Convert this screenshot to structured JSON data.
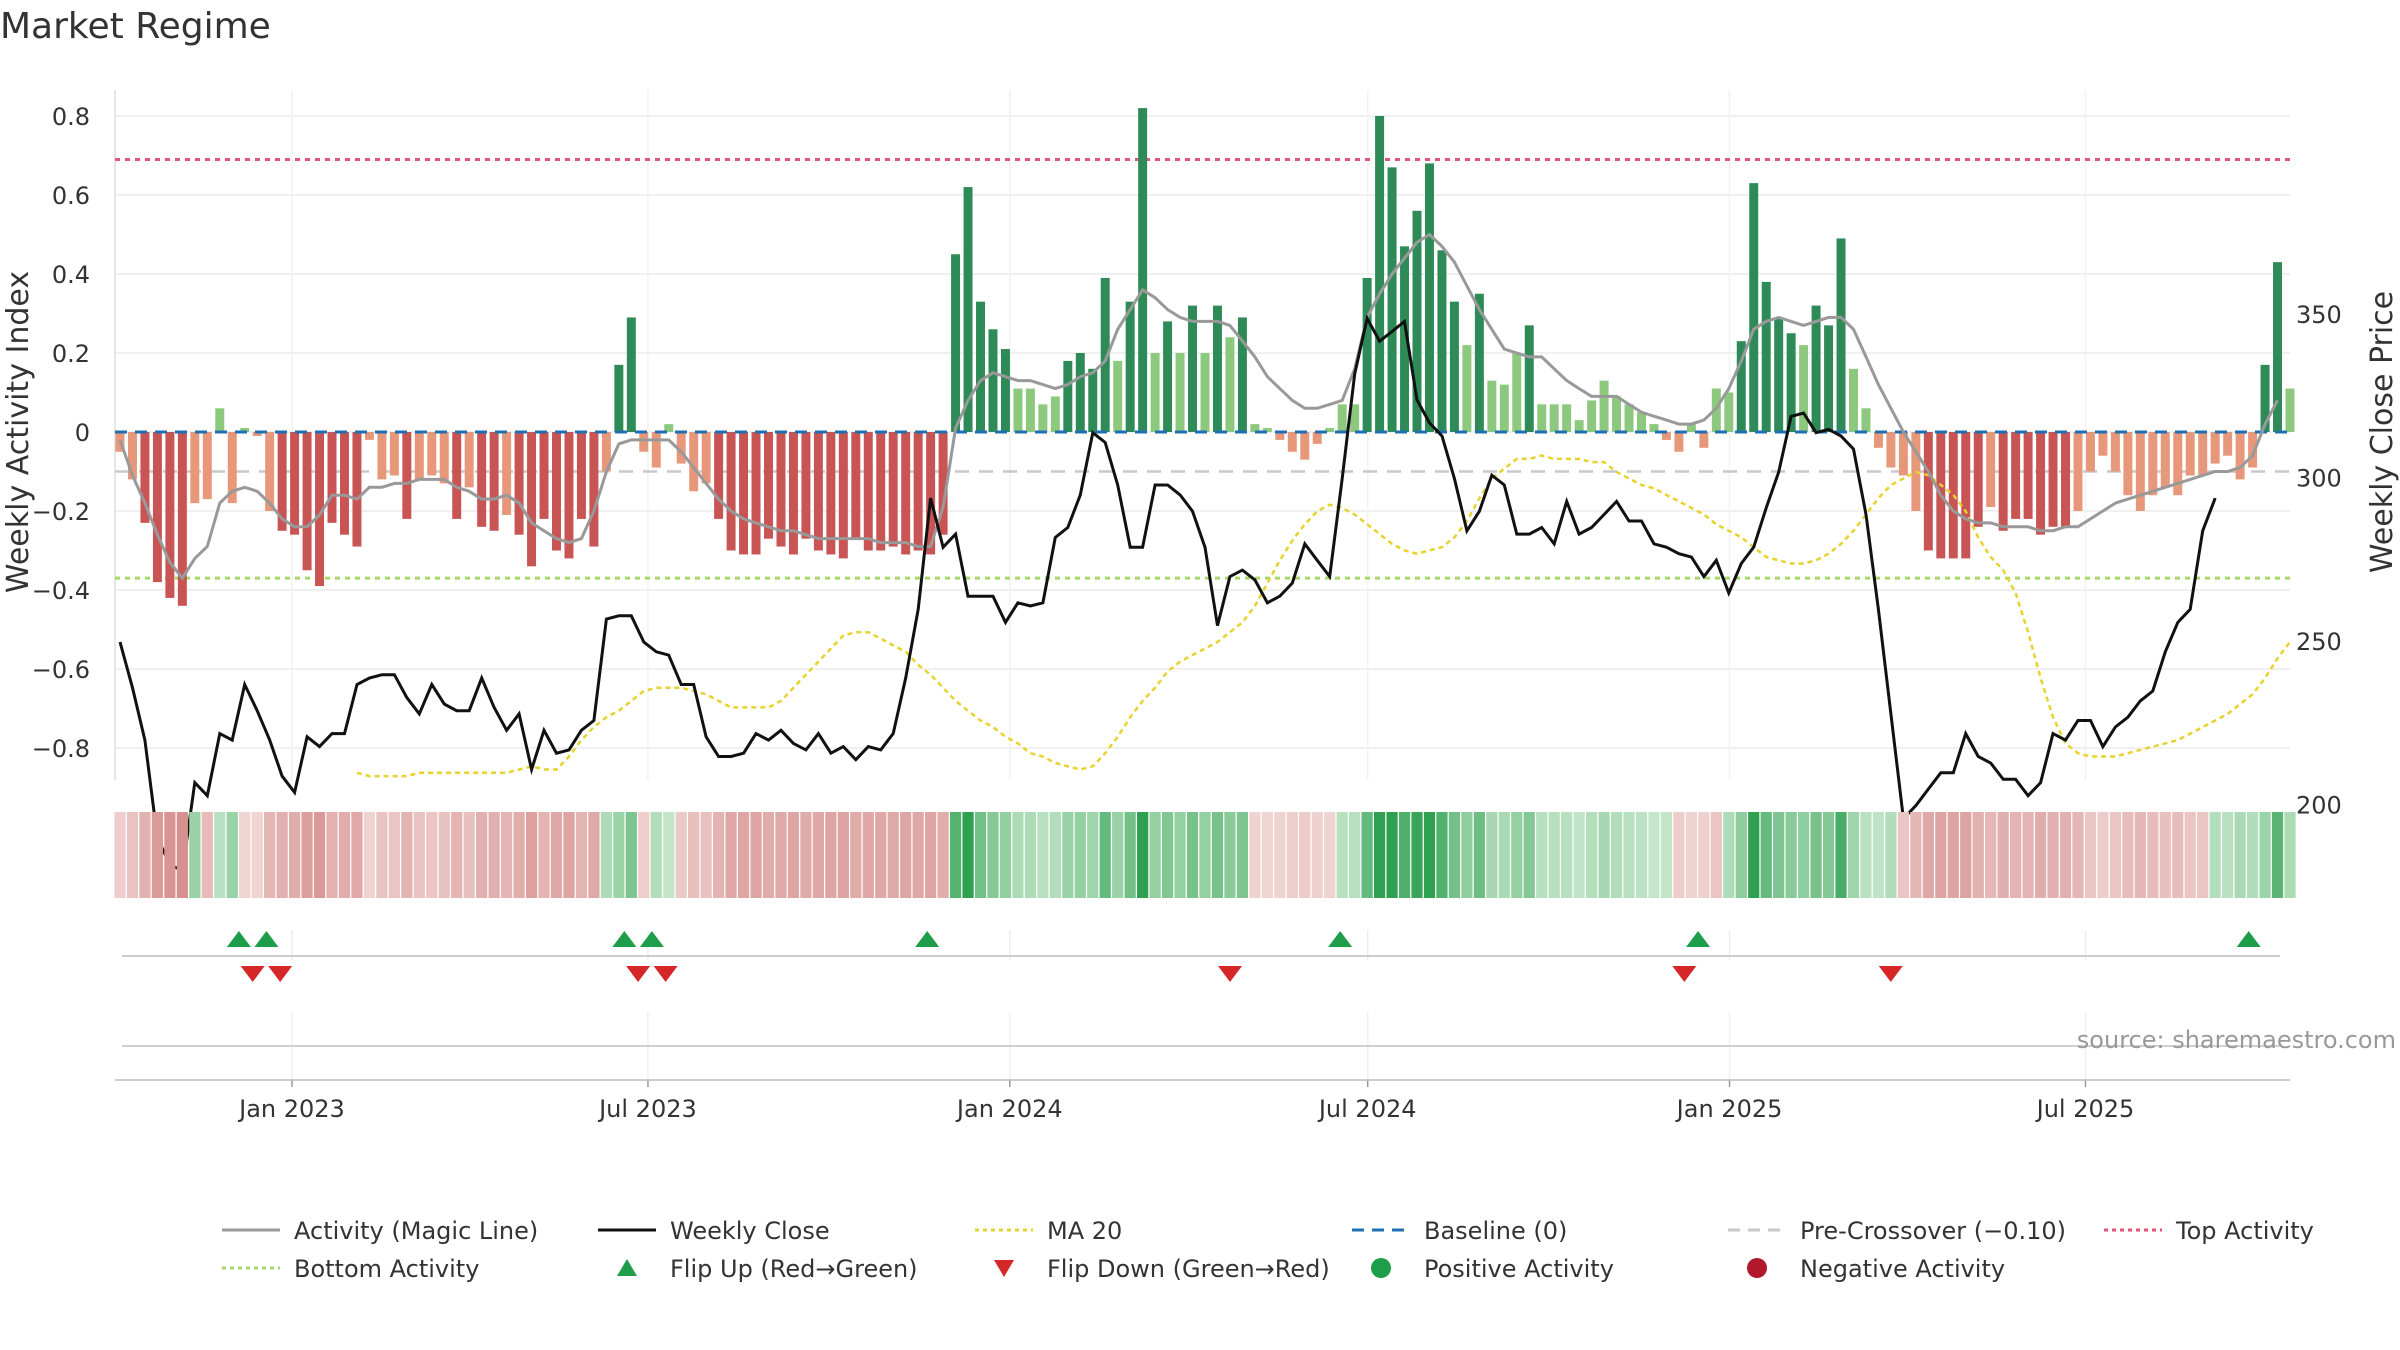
{
  "chart_data": {
    "type": "bar",
    "title": "Market Regime",
    "source": "source: sharemaestro.com",
    "ylabel_left": "Weekly Activity Index",
    "ylabel_right": "Weekly Close Price",
    "ylim_left": [
      -0.9,
      0.9
    ],
    "ylim_right": [
      155,
      365
    ],
    "yticks_left": [
      -0.8,
      -0.6,
      -0.4,
      -0.2,
      0,
      0.2,
      0.4,
      0.6,
      0.8
    ],
    "yticks_left_labels": [
      "−0.8",
      "−0.6",
      "−0.4",
      "−0.2",
      "0",
      "0.2",
      "0.4",
      "0.6",
      "0.8"
    ],
    "yticks_right": [
      200,
      250,
      300,
      350
    ],
    "x_start": "2022-10-03",
    "x_end": "2025-10-13",
    "x_ticks": [
      {
        "date": "2023-01-01",
        "label": "Jan 2023"
      },
      {
        "date": "2023-07-01",
        "label": "Jul 2023"
      },
      {
        "date": "2024-01-01",
        "label": "Jan 2024"
      },
      {
        "date": "2024-07-01",
        "label": "Jul 2024"
      },
      {
        "date": "2025-01-01",
        "label": "Jan 2025"
      },
      {
        "date": "2025-07-01",
        "label": "Jul 2025"
      }
    ],
    "reference_lines": {
      "baseline": 0,
      "pre_crossover": -0.1,
      "top_activity": 0.69,
      "bottom_activity": -0.37
    },
    "activity_index": [
      -0.05,
      -0.12,
      -0.23,
      -0.38,
      -0.42,
      -0.44,
      -0.18,
      -0.17,
      0.06,
      -0.18,
      0.01,
      -0.01,
      -0.2,
      -0.25,
      -0.26,
      -0.35,
      -0.39,
      -0.23,
      -0.26,
      -0.29,
      -0.02,
      -0.12,
      -0.11,
      -0.22,
      -0.12,
      -0.11,
      -0.13,
      -0.22,
      -0.14,
      -0.24,
      -0.25,
      -0.21,
      -0.26,
      -0.34,
      -0.22,
      -0.3,
      -0.32,
      -0.22,
      -0.29,
      -0.1,
      0.17,
      0.29,
      -0.05,
      -0.09,
      0.02,
      -0.08,
      -0.15,
      -0.13,
      -0.22,
      -0.3,
      -0.31,
      -0.31,
      -0.27,
      -0.29,
      -0.31,
      -0.27,
      -0.3,
      -0.31,
      -0.32,
      -0.27,
      -0.3,
      -0.3,
      -0.29,
      -0.31,
      -0.3,
      -0.31,
      -0.26,
      0.45,
      0.62,
      0.33,
      0.26,
      0.21,
      0.11,
      0.11,
      0.07,
      0.09,
      0.18,
      0.2,
      0.16,
      0.39,
      0.18,
      0.33,
      0.82,
      0.2,
      0.28,
      0.2,
      0.32,
      0.2,
      0.32,
      0.24,
      0.29,
      0.02,
      0.01,
      -0.02,
      -0.05,
      -0.07,
      -0.03,
      0.01,
      0.07,
      0.07,
      0.39,
      0.8,
      0.67,
      0.47,
      0.56,
      0.68,
      0.46,
      0.33,
      0.22,
      0.35,
      0.13,
      0.12,
      0.2,
      0.27,
      0.07,
      0.07,
      0.07,
      0.03,
      0.08,
      0.13,
      0.09,
      0.07,
      0.05,
      0.02,
      -0.02,
      -0.05,
      0.02,
      -0.04,
      0.11,
      0.1,
      0.23,
      0.63,
      0.38,
      0.29,
      0.25,
      0.22,
      0.32,
      0.27,
      0.49,
      0.16,
      0.06,
      -0.04,
      -0.09,
      -0.11,
      -0.2,
      -0.3,
      -0.32,
      -0.32,
      -0.32,
      -0.24,
      -0.19,
      -0.25,
      -0.22,
      -0.22,
      -0.26,
      -0.24,
      -0.24,
      -0.2,
      -0.1,
      -0.06,
      -0.1,
      -0.16,
      -0.2,
      -0.16,
      -0.14,
      -0.16,
      -0.11,
      -0.11,
      -0.08,
      -0.06,
      -0.12,
      -0.09,
      0.17,
      0.43,
      0.11
    ],
    "activity_magic_line": [
      -0.02,
      -0.11,
      -0.18,
      -0.26,
      -0.33,
      -0.37,
      -0.32,
      -0.29,
      -0.18,
      -0.15,
      -0.14,
      -0.15,
      -0.18,
      -0.22,
      -0.24,
      -0.24,
      -0.21,
      -0.16,
      -0.16,
      -0.17,
      -0.14,
      -0.14,
      -0.13,
      -0.13,
      -0.12,
      -0.12,
      -0.12,
      -0.14,
      -0.15,
      -0.17,
      -0.17,
      -0.16,
      -0.18,
      -0.23,
      -0.25,
      -0.27,
      -0.28,
      -0.27,
      -0.2,
      -0.1,
      -0.03,
      -0.02,
      -0.02,
      -0.02,
      -0.02,
      -0.05,
      -0.09,
      -0.13,
      -0.17,
      -0.2,
      -0.22,
      -0.23,
      -0.24,
      -0.25,
      -0.25,
      -0.26,
      -0.27,
      -0.27,
      -0.27,
      -0.27,
      -0.27,
      -0.28,
      -0.28,
      -0.28,
      -0.29,
      -0.29,
      -0.19,
      0.01,
      0.08,
      0.13,
      0.15,
      0.14,
      0.13,
      0.13,
      0.12,
      0.11,
      0.12,
      0.14,
      0.15,
      0.18,
      0.26,
      0.31,
      0.36,
      0.34,
      0.31,
      0.29,
      0.28,
      0.28,
      0.28,
      0.27,
      0.23,
      0.19,
      0.14,
      0.11,
      0.08,
      0.06,
      0.06,
      0.07,
      0.08,
      0.16,
      0.29,
      0.35,
      0.4,
      0.44,
      0.48,
      0.5,
      0.47,
      0.43,
      0.37,
      0.31,
      0.26,
      0.21,
      0.2,
      0.19,
      0.19,
      0.16,
      0.13,
      0.11,
      0.09,
      0.09,
      0.09,
      0.07,
      0.05,
      0.04,
      0.03,
      0.02,
      0.02,
      0.03,
      0.06,
      0.11,
      0.18,
      0.26,
      0.28,
      0.29,
      0.28,
      0.27,
      0.28,
      0.29,
      0.29,
      0.26,
      0.19,
      0.12,
      0.06,
      0.0,
      -0.05,
      -0.1,
      -0.16,
      -0.2,
      -0.22,
      -0.23,
      -0.23,
      -0.24,
      -0.24,
      -0.24,
      -0.25,
      -0.25,
      -0.24,
      -0.24,
      -0.22,
      -0.2,
      -0.18,
      -0.17,
      -0.16,
      -0.15,
      -0.14,
      -0.13,
      -0.12,
      -0.11,
      -0.1,
      -0.1,
      -0.09,
      -0.06,
      0.02,
      0.08
    ],
    "weekly_close": [
      250,
      236,
      220,
      190,
      182,
      180,
      207,
      203,
      222,
      220,
      237,
      229,
      220,
      209,
      204,
      221,
      218,
      222,
      222,
      237,
      239,
      240,
      240,
      233,
      228,
      237,
      231,
      229,
      229,
      239,
      230,
      223,
      228,
      211,
      223,
      216,
      217,
      223,
      226,
      257,
      258,
      258,
      250,
      247,
      246,
      237,
      237,
      221,
      215,
      215,
      216,
      222,
      220,
      223,
      219,
      217,
      222,
      216,
      218,
      214,
      218,
      217,
      222,
      239,
      260,
      294,
      279,
      283,
      264,
      264,
      264,
      256,
      262,
      261,
      262,
      282,
      285,
      295,
      314,
      311,
      298,
      279,
      279,
      298,
      298,
      295,
      290,
      279,
      255,
      270,
      272,
      269,
      262,
      264,
      268,
      280,
      275,
      270,
      300,
      332,
      349,
      342,
      345,
      348,
      324,
      317,
      313,
      300,
      284,
      290,
      301,
      298,
      283,
      283,
      285,
      280,
      293,
      283,
      285,
      289,
      293,
      287,
      287,
      280,
      279,
      277,
      276,
      270,
      275,
      265,
      274,
      279,
      291,
      302,
      319,
      320,
      314,
      315,
      313,
      309,
      289,
      260,
      228,
      196,
      200,
      205,
      210,
      210,
      222,
      215,
      213,
      208,
      208,
      203,
      207,
      222,
      220,
      226,
      226,
      218,
      224,
      227,
      232,
      235,
      247,
      256,
      260,
      284,
      294
    ],
    "ma20": [
      210,
      209,
      209,
      209,
      209,
      210,
      210,
      210,
      210,
      210,
      210,
      210,
      210,
      211,
      212,
      211,
      211,
      215,
      220,
      224,
      227,
      229,
      232,
      235,
      236,
      236,
      236,
      235,
      234,
      232,
      230,
      230,
      230,
      230,
      232,
      236,
      240,
      244,
      248,
      252,
      253,
      253,
      251,
      249,
      247,
      243,
      240,
      236,
      232,
      229,
      226,
      224,
      221,
      219,
      216,
      215,
      213,
      212,
      211,
      212,
      216,
      221,
      227,
      232,
      236,
      241,
      244,
      246,
      248,
      250,
      253,
      256,
      261,
      268,
      275,
      281,
      286,
      290,
      292,
      291,
      289,
      286,
      283,
      280,
      278,
      277,
      278,
      279,
      282,
      287,
      294,
      300,
      303,
      306,
      306,
      307,
      306,
      306,
      306,
      305,
      305,
      302,
      300,
      298,
      297,
      295,
      293,
      291,
      289,
      286,
      284,
      282,
      279,
      276,
      275,
      274,
      274,
      275,
      277,
      280,
      284,
      289,
      294,
      298,
      300,
      302,
      301,
      298,
      295,
      290,
      282,
      276,
      272,
      265,
      253,
      239,
      227,
      219,
      216,
      215,
      215,
      215,
      216,
      217,
      218,
      219,
      220,
      222,
      224,
      226,
      228,
      231,
      234,
      239,
      245,
      250
    ],
    "regime_shading": [
      1,
      1,
      1,
      1,
      1,
      1,
      0,
      1,
      0,
      0,
      1,
      1,
      1,
      1,
      1,
      1,
      1,
      1,
      1,
      1,
      1,
      1,
      1,
      1,
      1,
      1,
      1,
      1,
      1,
      1,
      1,
      1,
      1,
      1,
      1,
      1,
      1,
      1,
      1,
      0,
      0,
      0,
      1,
      0,
      0,
      1,
      1,
      1,
      1,
      1,
      1,
      1,
      1,
      1,
      1,
      1,
      1,
      1,
      1,
      1,
      1,
      1,
      1,
      1,
      1,
      1,
      1,
      0,
      0,
      0,
      0,
      0,
      0,
      0,
      0,
      0,
      0,
      0,
      0,
      0,
      0,
      0,
      0,
      0,
      0,
      0,
      0,
      0,
      0,
      0,
      0,
      1,
      1,
      1,
      1,
      1,
      1,
      1,
      0,
      0,
      0,
      0,
      0,
      0,
      0,
      0,
      0,
      0,
      0,
      0,
      0,
      0,
      0,
      0,
      0,
      0,
      0,
      0,
      0,
      0,
      0,
      0,
      0,
      0,
      0,
      1,
      1,
      1,
      1,
      0,
      0,
      0,
      0,
      0,
      0,
      0,
      0,
      0,
      0,
      0,
      0,
      0,
      0,
      1,
      1,
      1,
      1,
      1,
      1,
      1,
      1,
      1,
      1,
      1,
      1,
      1,
      1,
      1,
      1,
      1,
      1,
      1,
      1,
      1,
      1,
      1,
      1,
      1,
      0,
      0,
      0,
      0,
      0
    ],
    "flip_up_dates": [
      "2022-12-05",
      "2022-12-19",
      "2023-06-19",
      "2023-07-03",
      "2023-11-20",
      "2024-06-17",
      "2024-12-16",
      "2025-09-22"
    ],
    "flip_down_dates": [
      "2022-12-12",
      "2022-12-26",
      "2023-06-26",
      "2023-07-10",
      "2024-04-22",
      "2024-12-09",
      "2025-03-24"
    ],
    "colors": {
      "strong_positive": "#2e8b57",
      "weak_positive": "#8cc97f",
      "strong_negative": "#c95454",
      "weak_negative": "#e8987a",
      "magic_line": "#999999",
      "weekly_close": "#111111",
      "ma20": "#e8d22e",
      "baseline": "#1f6fb5",
      "pre_crossover": "#c8c8c8",
      "top_activity": "#e0557a",
      "bottom_activity": "#a6d96a",
      "flip_up": "#1e9e4a",
      "flip_down": "#d62728",
      "positive_dot": "#1e9e4a",
      "negative_dot": "#b2182b"
    },
    "legend": [
      {
        "label": "Activity (Magic Line)",
        "kind": "line",
        "color": "#999999",
        "dash": ""
      },
      {
        "label": "Weekly Close",
        "kind": "line",
        "color": "#111111",
        "dash": ""
      },
      {
        "label": "MA 20",
        "kind": "line",
        "color": "#e8d22e",
        "dash": "4,4"
      },
      {
        "label": "Baseline (0)",
        "kind": "line",
        "color": "#1f6fb5",
        "dash": "12,8"
      },
      {
        "label": "Pre-Crossover (−0.10)",
        "kind": "line",
        "color": "#c8c8c8",
        "dash": "12,8"
      },
      {
        "label": "Top Activity",
        "kind": "line",
        "color": "#e0557a",
        "dash": "4,4"
      },
      {
        "label": "Bottom Activity",
        "kind": "line",
        "color": "#a6d96a",
        "dash": "4,4"
      },
      {
        "label": "Flip Up (Red→Green)",
        "kind": "tri-up",
        "color": "#1e9e4a",
        "dash": ""
      },
      {
        "label": "Flip Down (Green→Red)",
        "kind": "tri-down",
        "color": "#d62728",
        "dash": ""
      },
      {
        "label": "Positive Activity",
        "kind": "dot",
        "color": "#1e9e4a",
        "dash": ""
      },
      {
        "label": "Negative Activity",
        "kind": "dot",
        "color": "#b2182b",
        "dash": ""
      }
    ]
  }
}
